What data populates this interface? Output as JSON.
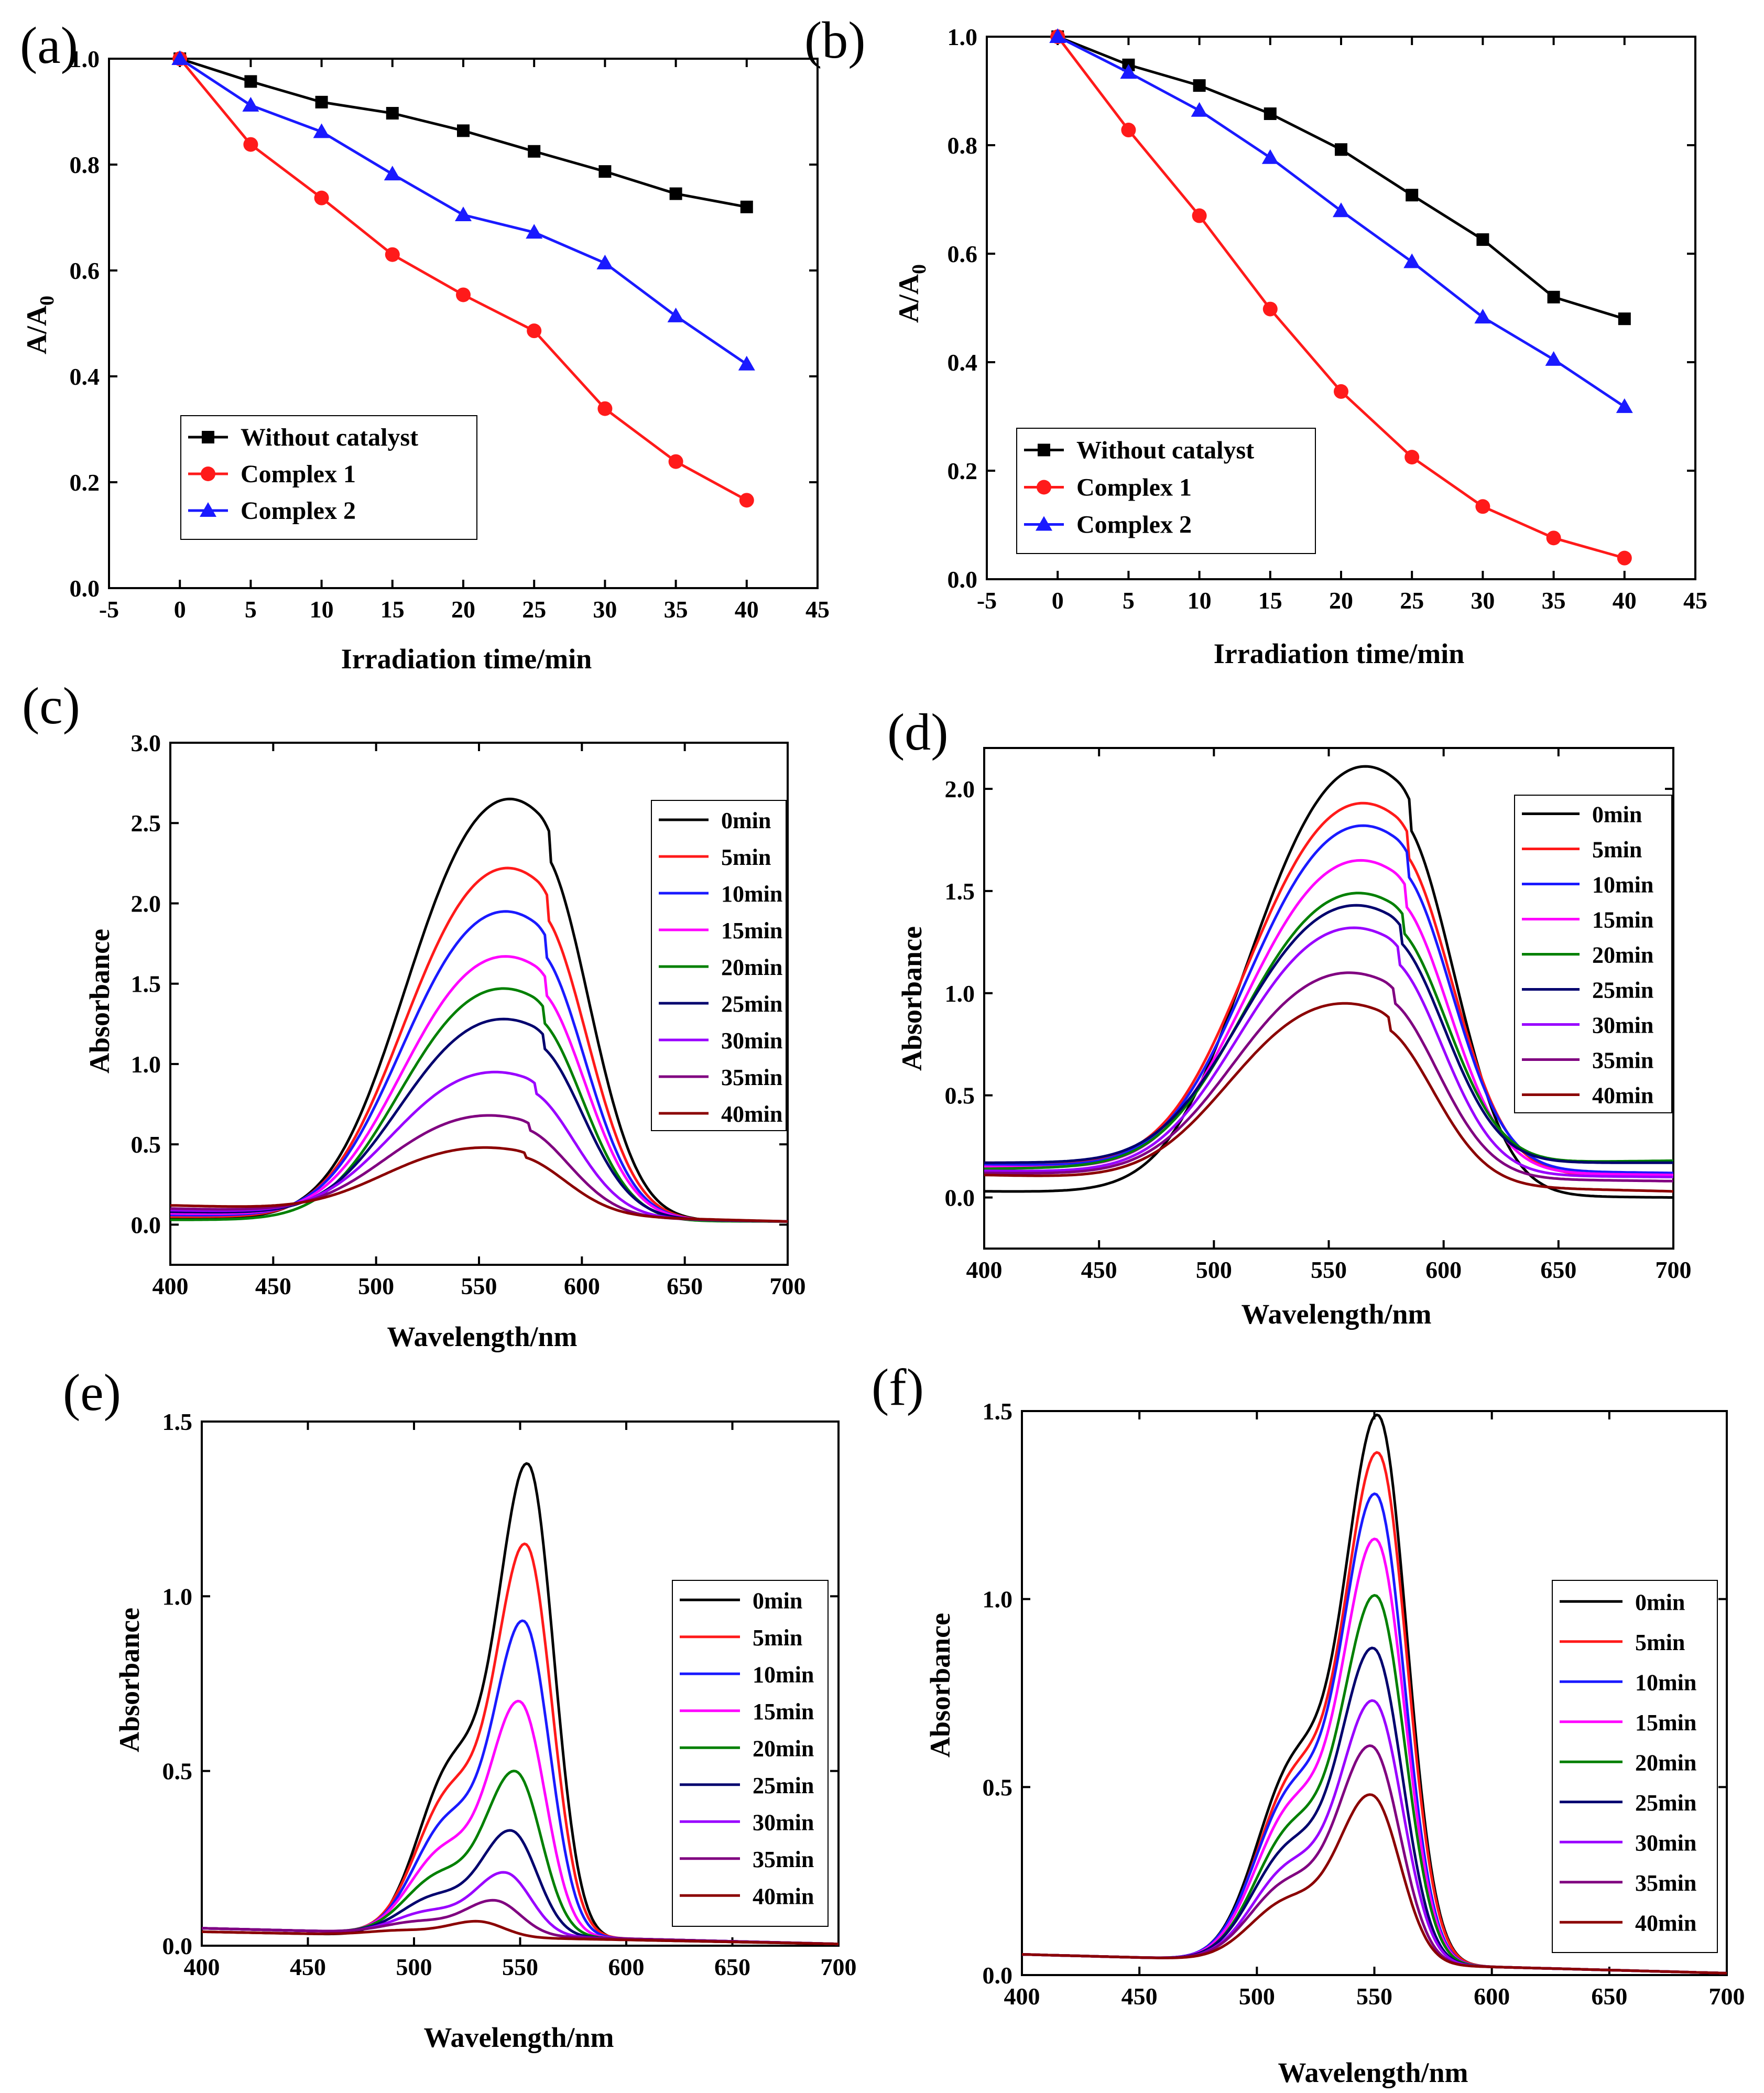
{
  "colors": {
    "black": "#000000",
    "red": "#ff1a1a",
    "blue": "#1a1aff",
    "magenta": "#ff00ff",
    "green": "#008000",
    "navy": "#00006e",
    "violet": "#9900ff",
    "purple": "#800080",
    "maroon": "#8b0000"
  },
  "chart_data": [
    {
      "panel": "(a)",
      "type": "line",
      "xlabel": "Irradiation time/min",
      "ylabel_main": "A/A",
      "ylabel_sub": "0",
      "xlim": [
        -5,
        45
      ],
      "ylim": [
        0,
        1.0
      ],
      "xticks": [
        "-5",
        "0",
        "5",
        "10",
        "15",
        "20",
        "25",
        "30",
        "35",
        "40",
        "45"
      ],
      "yticks": [
        "0.0",
        "0.2",
        "0.4",
        "0.6",
        "0.8",
        "1.0"
      ],
      "x": [
        0,
        5,
        10,
        15,
        20,
        25,
        30,
        35,
        40
      ],
      "series": [
        {
          "name": "Without catalyst",
          "color": "#000000",
          "marker": "square",
          "values": [
            1.0,
            0.957,
            0.918,
            0.897,
            0.864,
            0.825,
            0.787,
            0.745,
            0.72
          ]
        },
        {
          "name": "Complex 1",
          "color": "#ff1a1a",
          "marker": "circle",
          "values": [
            1.0,
            0.838,
            0.737,
            0.63,
            0.554,
            0.486,
            0.339,
            0.239,
            0.166
          ]
        },
        {
          "name": "Complex 2",
          "color": "#1a1aff",
          "marker": "triangle",
          "values": [
            1.0,
            0.912,
            0.862,
            0.782,
            0.705,
            0.672,
            0.614,
            0.514,
            0.423
          ]
        }
      ]
    },
    {
      "panel": "(b)",
      "type": "line",
      "xlabel": "Irradiation time/min",
      "ylabel_main": "A/A",
      "ylabel_sub": "0",
      "xlim": [
        -5,
        45
      ],
      "ylim": [
        0,
        1.0
      ],
      "xticks": [
        "-5",
        "0",
        "5",
        "10",
        "15",
        "20",
        "25",
        "30",
        "35",
        "40",
        "45"
      ],
      "yticks": [
        "0.0",
        "0.2",
        "0.4",
        "0.6",
        "0.8",
        "1.0"
      ],
      "x": [
        0,
        5,
        10,
        15,
        20,
        25,
        30,
        35,
        40
      ],
      "series": [
        {
          "name": "Without catalyst",
          "color": "#000000",
          "marker": "square",
          "values": [
            1.0,
            0.948,
            0.91,
            0.858,
            0.792,
            0.708,
            0.626,
            0.52,
            0.48
          ]
        },
        {
          "name": "Complex 1",
          "color": "#ff1a1a",
          "marker": "circle",
          "values": [
            1.0,
            0.828,
            0.67,
            0.498,
            0.346,
            0.225,
            0.134,
            0.076,
            0.039
          ]
        },
        {
          "name": "Complex 2",
          "color": "#1a1aff",
          "marker": "triangle",
          "values": [
            1.0,
            0.934,
            0.864,
            0.777,
            0.679,
            0.585,
            0.483,
            0.405,
            0.318
          ]
        }
      ]
    },
    {
      "panel": "(c)",
      "type": "line",
      "xlabel": "Wavelength/nm",
      "ylabel": "Absorbance",
      "xlim": [
        400,
        700
      ],
      "ylim": [
        -0.25,
        3.0
      ],
      "xticks": [
        "400",
        "450",
        "500",
        "550",
        "600",
        "650",
        "700"
      ],
      "yticks": [
        "0.0",
        "0.5",
        "1.0",
        "1.5",
        "2.0",
        "2.5",
        "3.0"
      ],
      "series": [
        {
          "name": "0min",
          "color": "#000000",
          "peak": 2.65,
          "peak_x": 579,
          "base_left": 0.04,
          "base_right": 0.02
        },
        {
          "name": "5min",
          "color": "#ff1a1a",
          "peak": 2.22,
          "peak_x": 578,
          "base_left": 0.05,
          "base_right": 0.02
        },
        {
          "name": "10min",
          "color": "#1a1aff",
          "peak": 1.95,
          "peak_x": 577,
          "base_left": 0.06,
          "base_right": 0.02
        },
        {
          "name": "15min",
          "color": "#ff00ff",
          "peak": 1.67,
          "peak_x": 577,
          "base_left": 0.07,
          "base_right": 0.02
        },
        {
          "name": "20min",
          "color": "#008000",
          "peak": 1.47,
          "peak_x": 576,
          "base_left": 0.03,
          "base_right": 0.02
        },
        {
          "name": "25min",
          "color": "#00006e",
          "peak": 1.28,
          "peak_x": 576,
          "base_left": 0.08,
          "base_right": 0.02
        },
        {
          "name": "30min",
          "color": "#9900ff",
          "peak": 0.95,
          "peak_x": 572,
          "base_left": 0.09,
          "base_right": 0.02
        },
        {
          "name": "35min",
          "color": "#800080",
          "peak": 0.68,
          "peak_x": 569,
          "base_left": 0.1,
          "base_right": 0.02
        },
        {
          "name": "40min",
          "color": "#8b0000",
          "peak": 0.48,
          "peak_x": 567,
          "base_left": 0.12,
          "base_right": 0.02
        }
      ]
    },
    {
      "panel": "(d)",
      "type": "line",
      "xlabel": "Wavelength/nm",
      "ylabel": "Absorbance",
      "xlim": [
        400,
        700
      ],
      "ylim": [
        -0.25,
        2.2
      ],
      "xticks": [
        "400",
        "450",
        "500",
        "550",
        "600",
        "650",
        "700"
      ],
      "yticks": [
        "0.0",
        "0.5",
        "1.0",
        "1.5",
        "2.0"
      ],
      "series": [
        {
          "name": "0min",
          "color": "#000000",
          "peak": 2.11,
          "peak_x": 580,
          "base_left": 0.03,
          "base_right": 0.0
        },
        {
          "name": "5min",
          "color": "#ff1a1a",
          "peak": 1.93,
          "peak_x": 579,
          "base_left": 0.17,
          "base_right": 0.1
        },
        {
          "name": "10min",
          "color": "#1a1aff",
          "peak": 1.82,
          "peak_x": 579,
          "base_left": 0.16,
          "base_right": 0.12
        },
        {
          "name": "15min",
          "color": "#ff00ff",
          "peak": 1.65,
          "peak_x": 578,
          "base_left": 0.15,
          "base_right": 0.11
        },
        {
          "name": "20min",
          "color": "#008000",
          "peak": 1.49,
          "peak_x": 577,
          "base_left": 0.14,
          "base_right": 0.18
        },
        {
          "name": "25min",
          "color": "#00006e",
          "peak": 1.43,
          "peak_x": 576,
          "base_left": 0.17,
          "base_right": 0.17
        },
        {
          "name": "30min",
          "color": "#9900ff",
          "peak": 1.32,
          "peak_x": 575,
          "base_left": 0.13,
          "base_right": 0.1
        },
        {
          "name": "35min",
          "color": "#800080",
          "peak": 1.1,
          "peak_x": 573,
          "base_left": 0.12,
          "base_right": 0.08
        },
        {
          "name": "40min",
          "color": "#8b0000",
          "peak": 0.95,
          "peak_x": 571,
          "base_left": 0.11,
          "base_right": 0.03
        }
      ]
    },
    {
      "panel": "(e)",
      "type": "line",
      "xlabel": "Wavelength/nm",
      "ylabel": "Absorbance",
      "xlim": [
        400,
        700
      ],
      "ylim": [
        0,
        1.5
      ],
      "xticks": [
        "400",
        "450",
        "500",
        "550",
        "600",
        "650",
        "700"
      ],
      "yticks": [
        "0.0",
        "0.5",
        "1.0",
        "1.5"
      ],
      "series": [
        {
          "name": "0min",
          "color": "#000000",
          "peak": 1.38,
          "peak_x": 554,
          "base_left": 0.04,
          "base_right": 0.005
        },
        {
          "name": "5min",
          "color": "#ff1a1a",
          "peak": 1.15,
          "peak_x": 553,
          "base_left": 0.05,
          "base_right": 0.005
        },
        {
          "name": "10min",
          "color": "#1a1aff",
          "peak": 0.93,
          "peak_x": 552,
          "base_left": 0.05,
          "base_right": 0.005
        },
        {
          "name": "15min",
          "color": "#ff00ff",
          "peak": 0.7,
          "peak_x": 550,
          "base_left": 0.05,
          "base_right": 0.005
        },
        {
          "name": "20min",
          "color": "#008000",
          "peak": 0.5,
          "peak_x": 548,
          "base_left": 0.05,
          "base_right": 0.005
        },
        {
          "name": "25min",
          "color": "#00006e",
          "peak": 0.33,
          "peak_x": 546,
          "base_left": 0.05,
          "base_right": 0.005
        },
        {
          "name": "30min",
          "color": "#9900ff",
          "peak": 0.21,
          "peak_x": 543,
          "base_left": 0.05,
          "base_right": 0.005
        },
        {
          "name": "35min",
          "color": "#800080",
          "peak": 0.13,
          "peak_x": 538,
          "base_left": 0.05,
          "base_right": 0.005
        },
        {
          "name": "40min",
          "color": "#8b0000",
          "peak": 0.07,
          "peak_x": 530,
          "base_left": 0.04,
          "base_right": 0.005
        }
      ]
    },
    {
      "panel": "(f)",
      "type": "line",
      "xlabel": "Wavelength/nm",
      "ylabel": "Absorbance",
      "xlim": [
        400,
        700
      ],
      "ylim": [
        0,
        1.5
      ],
      "xticks": [
        "400",
        "450",
        "500",
        "550",
        "600",
        "650",
        "700"
      ],
      "yticks": [
        "0.0",
        "0.5",
        "1.0",
        "1.5"
      ],
      "series": [
        {
          "name": "0min",
          "color": "#000000",
          "peak": 1.49,
          "peak_x": 552,
          "base_left": 0.055,
          "base_right": 0.005
        },
        {
          "name": "5min",
          "color": "#ff1a1a",
          "peak": 1.39,
          "peak_x": 552,
          "base_left": 0.055,
          "base_right": 0.005
        },
        {
          "name": "10min",
          "color": "#1a1aff",
          "peak": 1.28,
          "peak_x": 551,
          "base_left": 0.055,
          "base_right": 0.005
        },
        {
          "name": "15min",
          "color": "#ff00ff",
          "peak": 1.16,
          "peak_x": 551,
          "base_left": 0.055,
          "base_right": 0.005
        },
        {
          "name": "20min",
          "color": "#008000",
          "peak": 1.01,
          "peak_x": 551,
          "base_left": 0.055,
          "base_right": 0.005
        },
        {
          "name": "25min",
          "color": "#00006e",
          "peak": 0.87,
          "peak_x": 550,
          "base_left": 0.055,
          "base_right": 0.005
        },
        {
          "name": "30min",
          "color": "#9900ff",
          "peak": 0.73,
          "peak_x": 550,
          "base_left": 0.055,
          "base_right": 0.005
        },
        {
          "name": "35min",
          "color": "#800080",
          "peak": 0.61,
          "peak_x": 549,
          "base_left": 0.055,
          "base_right": 0.005
        },
        {
          "name": "40min",
          "color": "#8b0000",
          "peak": 0.48,
          "peak_x": 549,
          "base_left": 0.055,
          "base_right": 0.005
        }
      ]
    }
  ]
}
